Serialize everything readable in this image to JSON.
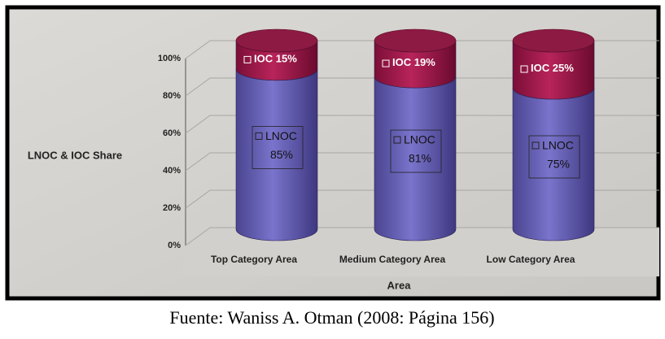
{
  "chart_data": {
    "type": "bar",
    "stacked": true,
    "y_label": "LNOC & IOC Share",
    "x_label": "Area",
    "caption": "Fuente: Waniss A. Otman (2008:  Página 156)",
    "categories": [
      "Top Category Area",
      "Medium Category Area",
      "Low Category Area"
    ],
    "series": [
      {
        "name": "LNOC",
        "color": "#6560b4",
        "values": [
          85,
          81,
          75
        ],
        "value_labels": [
          "85%",
          "81%",
          "75%"
        ]
      },
      {
        "name": "IOC",
        "color": "#a3174a",
        "values": [
          15,
          19,
          25
        ],
        "value_labels": [
          "15%",
          "19%",
          "25%"
        ]
      }
    ],
    "ylim": [
      0,
      100
    ],
    "yticks": [
      {
        "value": 0,
        "label": "0%"
      },
      {
        "value": 20,
        "label": "20%"
      },
      {
        "value": 40,
        "label": "40%"
      },
      {
        "value": 60,
        "label": "60%"
      },
      {
        "value": 80,
        "label": "80%"
      },
      {
        "value": 100,
        "label": "100%"
      }
    ],
    "grid": true
  }
}
